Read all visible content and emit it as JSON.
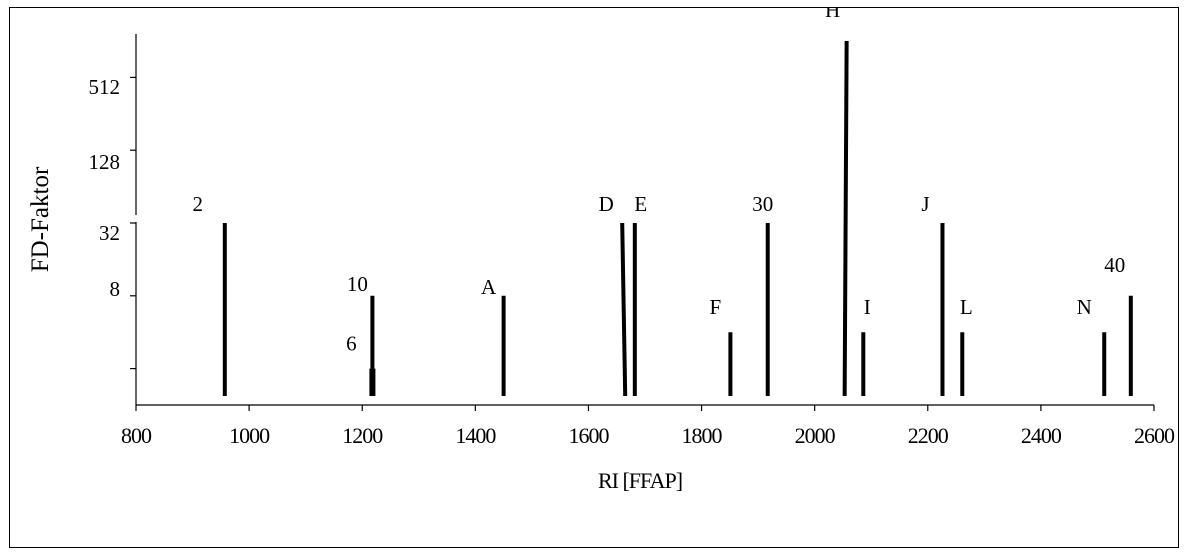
{
  "chart_data": {
    "type": "bar",
    "title": "",
    "xlabel": "RI [FFAP]",
    "ylabel": "FD-Faktor",
    "xlim": [
      800,
      2600
    ],
    "x_ticks": [
      800,
      1000,
      1200,
      1400,
      1600,
      1800,
      2000,
      2200,
      2400,
      2600
    ],
    "y_scale": "log2",
    "y_tick_labels": [
      {
        "label": "8",
        "value": 8
      },
      {
        "label": "32",
        "value": 32
      },
      {
        "label": "128",
        "value": 128
      },
      {
        "label": "512",
        "value": 512
      }
    ],
    "grid": false,
    "legend": "none",
    "bar_color": "#000000",
    "series": [
      {
        "values": [
          {
            "label": "2",
            "ri": 957,
            "fd": 32
          },
          {
            "label": "6",
            "ri": 1218,
            "fd": 2
          },
          {
            "label": "10",
            "ri": 1218,
            "fd": 8
          },
          {
            "label": "A",
            "ri": 1450,
            "fd": 8
          },
          {
            "label": "D",
            "ri": 1665,
            "fd": 32
          },
          {
            "label": "E",
            "ri": 1682,
            "fd": 32
          },
          {
            "label": "F",
            "ri": 1851,
            "fd": 4
          },
          {
            "label": "30",
            "ri": 1917,
            "fd": 32
          },
          {
            "label": "H",
            "ri": 2053,
            "fd": 1024
          },
          {
            "label": "I",
            "ri": 2086,
            "fd": 4
          },
          {
            "label": "J",
            "ri": 2226,
            "fd": 32
          },
          {
            "label": "L",
            "ri": 2261,
            "fd": 4
          },
          {
            "label": "N",
            "ri": 2512,
            "fd": 4
          },
          {
            "label": "40",
            "ri": 2559,
            "fd": 8
          }
        ]
      }
    ]
  }
}
